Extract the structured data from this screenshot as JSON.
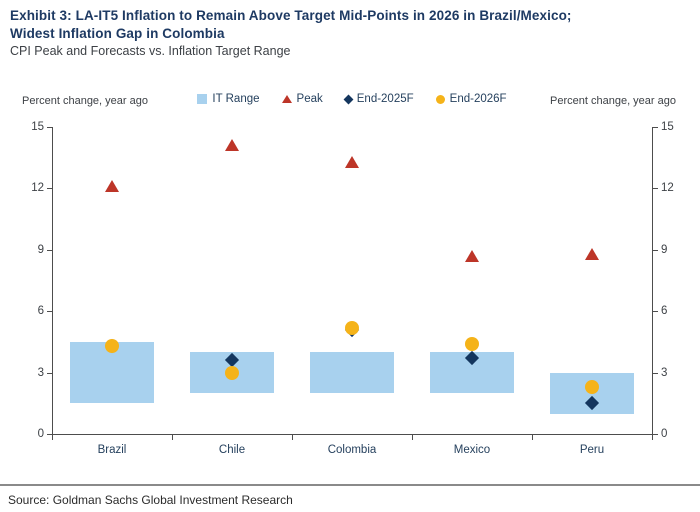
{
  "header": {
    "title_line1": "Exhibit 3: LA-IT5 Inflation to Remain Above Target Mid-Points in 2026 in Brazil/Mexico;",
    "title_line2": "Widest Inflation Gap in Colombia",
    "subtitle": "CPI Peak and Forecasts vs. Inflation Target Range"
  },
  "axes": {
    "left_label": "Percent change, year ago",
    "right_label": "Percent change, year ago",
    "ticks": [
      0,
      3,
      6,
      9,
      12,
      15
    ]
  },
  "legend": [
    {
      "label": "IT Range",
      "marker": "square",
      "color": "#A8D1EE"
    },
    {
      "label": "Peak",
      "marker": "triangle",
      "color": "#BD3528"
    },
    {
      "label": "End-2025F",
      "marker": "diamond",
      "color": "#14365E"
    },
    {
      "label": "End-2026F",
      "marker": "circle",
      "color": "#F5B319"
    }
  ],
  "chart_data": {
    "type": "bar",
    "subtype": "floating-range-bars-with-scatter-markers",
    "title": "CPI Peak and Forecasts vs. Inflation Target Range",
    "xlabel": "",
    "ylabel": "Percent change, year ago",
    "ylim": [
      0,
      15
    ],
    "yticks": [
      0,
      3,
      6,
      9,
      12,
      15
    ],
    "grid": false,
    "legend_position": "top-center",
    "categories": [
      "Brazil",
      "Chile",
      "Colombia",
      "Mexico",
      "Peru"
    ],
    "series": [
      {
        "name": "IT Range",
        "type": "range_bar",
        "marker": "square",
        "low": [
          1.5,
          2.0,
          2.0,
          2.0,
          1.0
        ],
        "high": [
          4.5,
          4.0,
          4.0,
          4.0,
          3.0
        ],
        "color": "#A8D1EE"
      },
      {
        "name": "Peak",
        "type": "scatter",
        "marker": "triangle",
        "values": [
          12.1,
          14.1,
          13.3,
          8.7,
          8.8
        ],
        "color": "#BD3528"
      },
      {
        "name": "End-2025F",
        "type": "scatter",
        "marker": "diamond",
        "values": [
          4.3,
          3.6,
          5.1,
          3.7,
          1.5
        ],
        "color": "#14365E"
      },
      {
        "name": "End-2026F",
        "type": "scatter",
        "marker": "circle",
        "values": [
          4.3,
          3.0,
          5.2,
          4.4,
          2.3
        ],
        "color": "#F5B319"
      }
    ]
  },
  "footer": {
    "source": "Source: Goldman Sachs Global Investment Research"
  }
}
